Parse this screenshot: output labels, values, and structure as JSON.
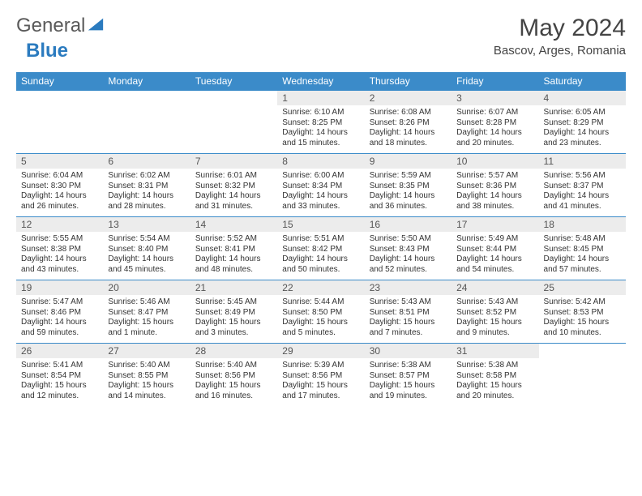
{
  "logo": {
    "text_a": "General",
    "text_b": "Blue"
  },
  "title": "May 2024",
  "location": "Bascov, Arges, Romania",
  "header_bg": "#3b8bc9",
  "header_fg": "#ffffff",
  "daynum_bg": "#ececec",
  "line_color": "#3b8bc9",
  "weekdays": [
    "Sunday",
    "Monday",
    "Tuesday",
    "Wednesday",
    "Thursday",
    "Friday",
    "Saturday"
  ],
  "weeks": [
    [
      {
        "n": "",
        "lines": []
      },
      {
        "n": "",
        "lines": []
      },
      {
        "n": "",
        "lines": []
      },
      {
        "n": "1",
        "lines": [
          "Sunrise: 6:10 AM",
          "Sunset: 8:25 PM",
          "Daylight: 14 hours",
          "and 15 minutes."
        ]
      },
      {
        "n": "2",
        "lines": [
          "Sunrise: 6:08 AM",
          "Sunset: 8:26 PM",
          "Daylight: 14 hours",
          "and 18 minutes."
        ]
      },
      {
        "n": "3",
        "lines": [
          "Sunrise: 6:07 AM",
          "Sunset: 8:28 PM",
          "Daylight: 14 hours",
          "and 20 minutes."
        ]
      },
      {
        "n": "4",
        "lines": [
          "Sunrise: 6:05 AM",
          "Sunset: 8:29 PM",
          "Daylight: 14 hours",
          "and 23 minutes."
        ]
      }
    ],
    [
      {
        "n": "5",
        "lines": [
          "Sunrise: 6:04 AM",
          "Sunset: 8:30 PM",
          "Daylight: 14 hours",
          "and 26 minutes."
        ]
      },
      {
        "n": "6",
        "lines": [
          "Sunrise: 6:02 AM",
          "Sunset: 8:31 PM",
          "Daylight: 14 hours",
          "and 28 minutes."
        ]
      },
      {
        "n": "7",
        "lines": [
          "Sunrise: 6:01 AM",
          "Sunset: 8:32 PM",
          "Daylight: 14 hours",
          "and 31 minutes."
        ]
      },
      {
        "n": "8",
        "lines": [
          "Sunrise: 6:00 AM",
          "Sunset: 8:34 PM",
          "Daylight: 14 hours",
          "and 33 minutes."
        ]
      },
      {
        "n": "9",
        "lines": [
          "Sunrise: 5:59 AM",
          "Sunset: 8:35 PM",
          "Daylight: 14 hours",
          "and 36 minutes."
        ]
      },
      {
        "n": "10",
        "lines": [
          "Sunrise: 5:57 AM",
          "Sunset: 8:36 PM",
          "Daylight: 14 hours",
          "and 38 minutes."
        ]
      },
      {
        "n": "11",
        "lines": [
          "Sunrise: 5:56 AM",
          "Sunset: 8:37 PM",
          "Daylight: 14 hours",
          "and 41 minutes."
        ]
      }
    ],
    [
      {
        "n": "12",
        "lines": [
          "Sunrise: 5:55 AM",
          "Sunset: 8:38 PM",
          "Daylight: 14 hours",
          "and 43 minutes."
        ]
      },
      {
        "n": "13",
        "lines": [
          "Sunrise: 5:54 AM",
          "Sunset: 8:40 PM",
          "Daylight: 14 hours",
          "and 45 minutes."
        ]
      },
      {
        "n": "14",
        "lines": [
          "Sunrise: 5:52 AM",
          "Sunset: 8:41 PM",
          "Daylight: 14 hours",
          "and 48 minutes."
        ]
      },
      {
        "n": "15",
        "lines": [
          "Sunrise: 5:51 AM",
          "Sunset: 8:42 PM",
          "Daylight: 14 hours",
          "and 50 minutes."
        ]
      },
      {
        "n": "16",
        "lines": [
          "Sunrise: 5:50 AM",
          "Sunset: 8:43 PM",
          "Daylight: 14 hours",
          "and 52 minutes."
        ]
      },
      {
        "n": "17",
        "lines": [
          "Sunrise: 5:49 AM",
          "Sunset: 8:44 PM",
          "Daylight: 14 hours",
          "and 54 minutes."
        ]
      },
      {
        "n": "18",
        "lines": [
          "Sunrise: 5:48 AM",
          "Sunset: 8:45 PM",
          "Daylight: 14 hours",
          "and 57 minutes."
        ]
      }
    ],
    [
      {
        "n": "19",
        "lines": [
          "Sunrise: 5:47 AM",
          "Sunset: 8:46 PM",
          "Daylight: 14 hours",
          "and 59 minutes."
        ]
      },
      {
        "n": "20",
        "lines": [
          "Sunrise: 5:46 AM",
          "Sunset: 8:47 PM",
          "Daylight: 15 hours",
          "and 1 minute."
        ]
      },
      {
        "n": "21",
        "lines": [
          "Sunrise: 5:45 AM",
          "Sunset: 8:49 PM",
          "Daylight: 15 hours",
          "and 3 minutes."
        ]
      },
      {
        "n": "22",
        "lines": [
          "Sunrise: 5:44 AM",
          "Sunset: 8:50 PM",
          "Daylight: 15 hours",
          "and 5 minutes."
        ]
      },
      {
        "n": "23",
        "lines": [
          "Sunrise: 5:43 AM",
          "Sunset: 8:51 PM",
          "Daylight: 15 hours",
          "and 7 minutes."
        ]
      },
      {
        "n": "24",
        "lines": [
          "Sunrise: 5:43 AM",
          "Sunset: 8:52 PM",
          "Daylight: 15 hours",
          "and 9 minutes."
        ]
      },
      {
        "n": "25",
        "lines": [
          "Sunrise: 5:42 AM",
          "Sunset: 8:53 PM",
          "Daylight: 15 hours",
          "and 10 minutes."
        ]
      }
    ],
    [
      {
        "n": "26",
        "lines": [
          "Sunrise: 5:41 AM",
          "Sunset: 8:54 PM",
          "Daylight: 15 hours",
          "and 12 minutes."
        ]
      },
      {
        "n": "27",
        "lines": [
          "Sunrise: 5:40 AM",
          "Sunset: 8:55 PM",
          "Daylight: 15 hours",
          "and 14 minutes."
        ]
      },
      {
        "n": "28",
        "lines": [
          "Sunrise: 5:40 AM",
          "Sunset: 8:56 PM",
          "Daylight: 15 hours",
          "and 16 minutes."
        ]
      },
      {
        "n": "29",
        "lines": [
          "Sunrise: 5:39 AM",
          "Sunset: 8:56 PM",
          "Daylight: 15 hours",
          "and 17 minutes."
        ]
      },
      {
        "n": "30",
        "lines": [
          "Sunrise: 5:38 AM",
          "Sunset: 8:57 PM",
          "Daylight: 15 hours",
          "and 19 minutes."
        ]
      },
      {
        "n": "31",
        "lines": [
          "Sunrise: 5:38 AM",
          "Sunset: 8:58 PM",
          "Daylight: 15 hours",
          "and 20 minutes."
        ]
      },
      {
        "n": "",
        "lines": []
      }
    ]
  ]
}
